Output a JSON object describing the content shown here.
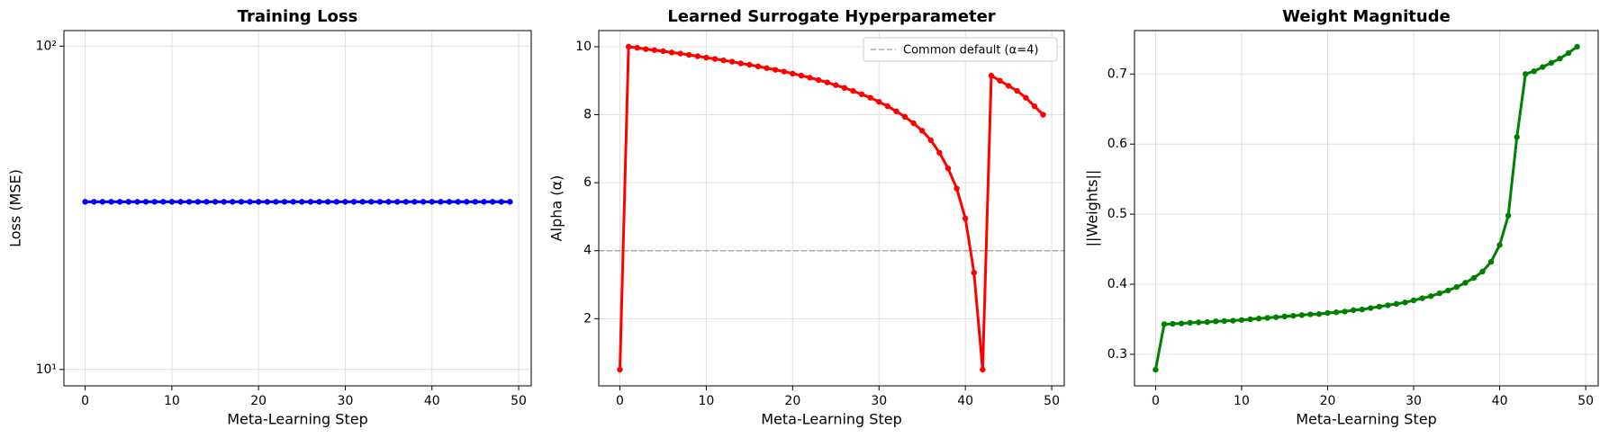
{
  "chart_data": [
    {
      "type": "line",
      "title": "Training Loss",
      "xlabel": "Meta-Learning Step",
      "ylabel": "Loss (MSE)",
      "x": [
        0,
        1,
        2,
        3,
        4,
        5,
        6,
        7,
        8,
        9,
        10,
        11,
        12,
        13,
        14,
        15,
        16,
        17,
        18,
        19,
        20,
        21,
        22,
        23,
        24,
        25,
        26,
        27,
        28,
        29,
        30,
        31,
        32,
        33,
        34,
        35,
        36,
        37,
        38,
        39,
        40,
        41,
        42,
        43,
        44,
        45,
        46,
        47,
        48,
        49
      ],
      "series": [
        {
          "color": "#0000ff",
          "values": [
            33,
            33,
            33,
            33,
            33,
            33,
            33,
            33,
            33,
            33,
            33,
            33,
            33,
            33,
            33,
            33,
            33,
            33,
            33,
            33,
            33,
            33,
            33,
            33,
            33,
            33,
            33,
            33,
            33,
            33,
            33,
            33,
            33,
            33,
            33,
            33,
            33,
            33,
            33,
            33,
            33,
            33,
            33,
            33,
            33,
            33,
            33,
            33,
            33,
            33
          ]
        }
      ],
      "xlim": [
        -2.45,
        51.45
      ],
      "xticks": [
        0,
        10,
        20,
        30,
        40,
        50
      ],
      "ylim": [
        8.9,
        111.7
      ],
      "yscale": "log",
      "yticks": [
        {
          "value": 10,
          "label": "10¹"
        },
        {
          "value": 100,
          "label": "10²"
        }
      ],
      "grid": true
    },
    {
      "type": "line",
      "title": "Learned Surrogate Hyperparameter",
      "xlabel": "Meta-Learning Step",
      "ylabel": "Alpha (α)",
      "x": [
        0,
        1,
        2,
        3,
        4,
        5,
        6,
        7,
        8,
        9,
        10,
        11,
        12,
        13,
        14,
        15,
        16,
        17,
        18,
        19,
        20,
        21,
        22,
        23,
        24,
        25,
        26,
        27,
        28,
        29,
        30,
        31,
        32,
        33,
        34,
        35,
        36,
        37,
        38,
        39,
        40,
        41,
        42,
        43,
        44,
        45,
        46,
        47,
        48,
        49
      ],
      "series": [
        {
          "color": "#ff0000",
          "values": [
            0.5,
            10.0,
            9.97,
            9.93,
            9.9,
            9.87,
            9.83,
            9.8,
            9.76,
            9.72,
            9.68,
            9.64,
            9.6,
            9.56,
            9.51,
            9.47,
            9.42,
            9.37,
            9.32,
            9.27,
            9.21,
            9.15,
            9.09,
            9.02,
            8.95,
            8.87,
            8.79,
            8.7,
            8.6,
            8.5,
            8.38,
            8.25,
            8.1,
            7.94,
            7.75,
            7.53,
            7.25,
            6.88,
            6.42,
            5.83,
            4.95,
            3.35,
            0.5,
            9.15,
            9.0,
            8.85,
            8.7,
            8.5,
            8.25,
            8.0
          ]
        }
      ],
      "hline": {
        "y": 4,
        "label": "Common default (α=4)",
        "color": "#aaaaaa"
      },
      "legend": "upper right",
      "xlim": [
        -2.45,
        51.45
      ],
      "xticks": [
        0,
        10,
        20,
        30,
        40,
        50
      ],
      "ylim": [
        0.025,
        10.475
      ],
      "yticks": [
        2,
        4,
        6,
        8,
        10
      ],
      "grid": true
    },
    {
      "type": "line",
      "title": "Weight Magnitude",
      "xlabel": "Meta-Learning Step",
      "ylabel": "||Weights||",
      "x": [
        0,
        1,
        2,
        3,
        4,
        5,
        6,
        7,
        8,
        9,
        10,
        11,
        12,
        13,
        14,
        15,
        16,
        17,
        18,
        19,
        20,
        21,
        22,
        23,
        24,
        25,
        26,
        27,
        28,
        29,
        30,
        31,
        32,
        33,
        34,
        35,
        36,
        37,
        38,
        39,
        40,
        41,
        42,
        43,
        44,
        45,
        46,
        47,
        48,
        49
      ],
      "series": [
        {
          "color": "#008000",
          "values": [
            0.278,
            0.343,
            0.3435,
            0.344,
            0.345,
            0.3455,
            0.346,
            0.347,
            0.3475,
            0.348,
            0.349,
            0.35,
            0.351,
            0.352,
            0.353,
            0.354,
            0.355,
            0.356,
            0.357,
            0.3575,
            0.359,
            0.36,
            0.361,
            0.363,
            0.364,
            0.366,
            0.368,
            0.37,
            0.372,
            0.374,
            0.377,
            0.38,
            0.383,
            0.387,
            0.391,
            0.396,
            0.402,
            0.409,
            0.418,
            0.432,
            0.456,
            0.498,
            0.61,
            0.7,
            0.704,
            0.71,
            0.716,
            0.722,
            0.73,
            0.739
          ]
        }
      ],
      "xlim": [
        -2.45,
        51.45
      ],
      "xticks": [
        0,
        10,
        20,
        30,
        40,
        50
      ],
      "ylim": [
        0.255,
        0.762
      ],
      "yticks": [
        0.3,
        0.4,
        0.5,
        0.6,
        0.7
      ],
      "grid": true
    }
  ]
}
